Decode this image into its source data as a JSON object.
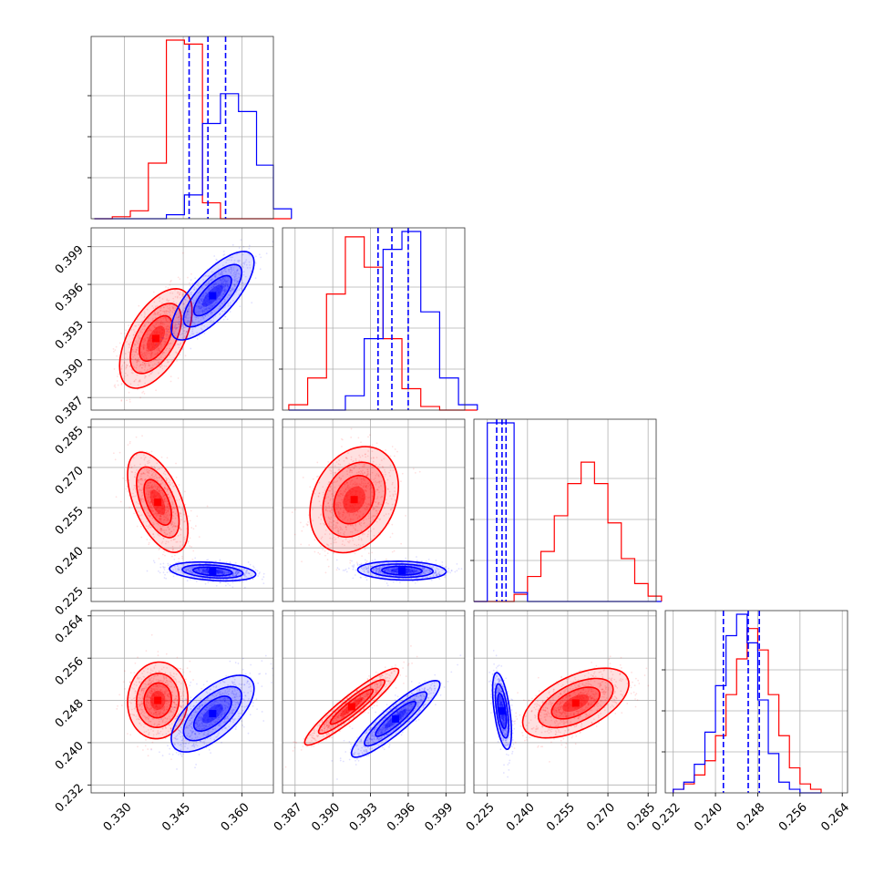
{
  "chart_data": {
    "type": "corner",
    "title": "",
    "grid": true,
    "colors": {
      "red": "#ff0000",
      "blue": "#0000ff"
    },
    "series": [
      {
        "color": "#ff0000",
        "marginal_quantile_lines": false
      },
      {
        "color": "#0000ff",
        "marginal_quantile_lines": true
      }
    ],
    "params": [
      {
        "range": [
          0.3215,
          0.368
        ],
        "ticks": [
          "0.330",
          "0.345",
          "0.360"
        ]
      },
      {
        "range": [
          0.386,
          0.4005
        ],
        "ticks": [
          "0.387",
          "0.390",
          "0.393",
          "0.396",
          "0.399"
        ]
      },
      {
        "range": [
          0.22,
          0.288
        ],
        "ticks": [
          "0.225",
          "0.240",
          "0.255",
          "0.270",
          "0.285"
        ]
      },
      {
        "range": [
          0.2305,
          0.265
        ],
        "ticks": [
          "0.232",
          "0.240",
          "0.248",
          "0.256",
          "0.264"
        ]
      }
    ],
    "marginals": [
      {
        "param": 0,
        "bins": [
          0.3223,
          0.3269,
          0.3315,
          0.3361,
          0.3407,
          0.3453,
          0.3499,
          0.3545,
          0.3591,
          0.3637,
          0.368
        ],
        "red": [
          0,
          1,
          4,
          28,
          90,
          88,
          8,
          0,
          0,
          0,
          0
        ],
        "blue": [
          0,
          0,
          0,
          0,
          2,
          12,
          48,
          63,
          54,
          27,
          5
        ],
        "blue_quantiles": [
          0.3465,
          0.3513,
          0.3558
        ]
      },
      {
        "param": 1,
        "bins": [
          0.3865,
          0.388,
          0.3895,
          0.391,
          0.3925,
          0.394,
          0.3955,
          0.397,
          0.3985,
          0.4
        ],
        "red": [
          3,
          18,
          65,
          97,
          80,
          40,
          12,
          2,
          0,
          0
        ],
        "blue": [
          0,
          0,
          0,
          8,
          40,
          90,
          100,
          55,
          18,
          3
        ],
        "blue_quantiles": [
          0.3936,
          0.3947,
          0.396
        ]
      },
      {
        "param": 2,
        "bins": [
          0.22,
          0.225,
          0.23,
          0.235,
          0.24,
          0.245,
          0.25,
          0.255,
          0.26,
          0.265,
          0.27,
          0.275,
          0.28,
          0.285
        ],
        "red": [
          0,
          0,
          0,
          4,
          14,
          28,
          48,
          66,
          78,
          66,
          44,
          24,
          10,
          3
        ],
        "blue": [
          0,
          100,
          100,
          5,
          0,
          0,
          0,
          0,
          0,
          0,
          0,
          0,
          0,
          0
        ],
        "blue_quantiles": [
          0.2285,
          0.2305,
          0.232
        ]
      },
      {
        "param": 3,
        "bins": [
          0.232,
          0.234,
          0.236,
          0.238,
          0.24,
          0.242,
          0.244,
          0.246,
          0.248,
          0.25,
          0.252,
          0.254,
          0.256,
          0.258
        ],
        "red": [
          2,
          5,
          10,
          18,
          32,
          55,
          75,
          92,
          80,
          55,
          32,
          14,
          5,
          2
        ],
        "blue": [
          2,
          6,
          16,
          34,
          60,
          88,
          100,
          84,
          52,
          22,
          6,
          2,
          0,
          0
        ],
        "blue_quantiles": [
          0.2415,
          0.2462,
          0.2483
        ]
      }
    ],
    "joint": [
      {
        "x": 0,
        "y": 1,
        "red": {
          "mean": [
            0.338,
            0.3917
          ],
          "sd": [
            0.0042,
            0.0018
          ],
          "rho": 0.55
        },
        "blue": {
          "mean": [
            0.3525,
            0.3951
          ],
          "sd": [
            0.0048,
            0.0016
          ],
          "rho": 0.75
        }
      },
      {
        "x": 0,
        "y": 2,
        "red": {
          "mean": [
            0.3385,
            0.257
          ],
          "sd": [
            0.0035,
            0.0085
          ],
          "rho": -0.55
        },
        "blue": {
          "mean": [
            0.3525,
            0.2312
          ],
          "sd": [
            0.005,
            0.0016
          ],
          "rho": -0.3
        }
      },
      {
        "x": 1,
        "y": 2,
        "red": {
          "mean": [
            0.3917,
            0.258
          ],
          "sd": [
            0.0016,
            0.009
          ],
          "rho": 0.25
        },
        "blue": {
          "mean": [
            0.3955,
            0.2315
          ],
          "sd": [
            0.0016,
            0.0016
          ],
          "rho": -0.1
        }
      },
      {
        "x": 0,
        "y": 3,
        "red": {
          "mean": [
            0.3385,
            0.248
          ],
          "sd": [
            0.0035,
            0.0033
          ],
          "rho": 0.05
        },
        "blue": {
          "mean": [
            0.3525,
            0.2455
          ],
          "sd": [
            0.0048,
            0.0033
          ],
          "rho": 0.65
        }
      },
      {
        "x": 1,
        "y": 3,
        "red": {
          "mean": [
            0.3915,
            0.2468
          ],
          "sd": [
            0.0017,
            0.0033
          ],
          "rho": 0.93
        },
        "blue": {
          "mean": [
            0.395,
            0.2445
          ],
          "sd": [
            0.0016,
            0.0033
          ],
          "rho": 0.9
        }
      },
      {
        "x": 2,
        "y": 3,
        "red": {
          "mean": [
            0.258,
            0.2475
          ],
          "sd": [
            0.009,
            0.003
          ],
          "rho": 0.55
        },
        "blue": {
          "mean": [
            0.2305,
            0.246
          ],
          "sd": [
            0.0016,
            0.0033
          ],
          "rho": -0.55
        }
      }
    ]
  }
}
